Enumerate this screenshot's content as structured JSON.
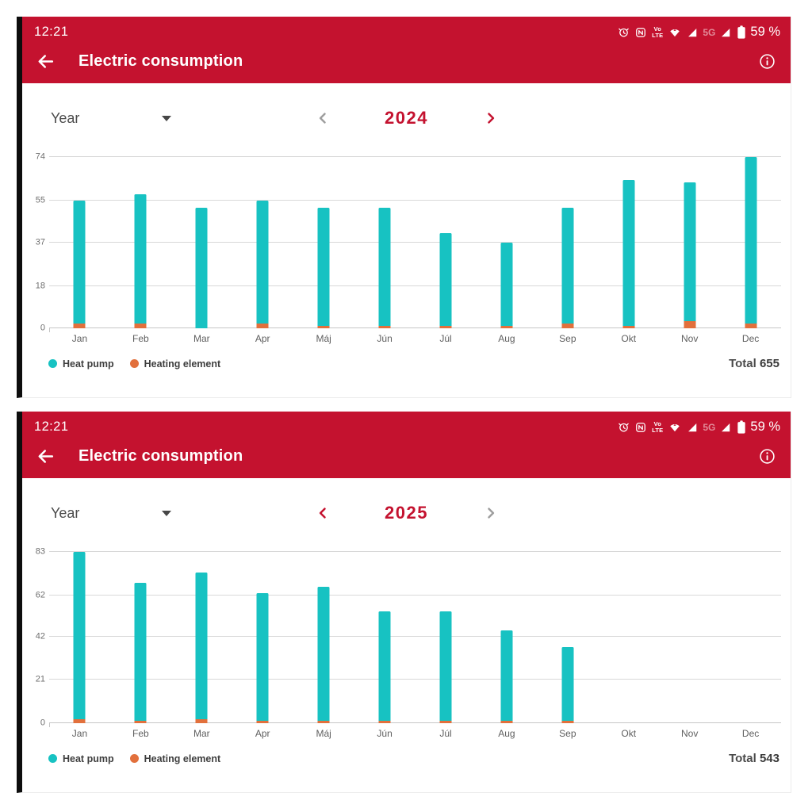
{
  "colors": {
    "accent": "#C4122F",
    "heat_pump": "#17C2C2",
    "heating_element": "#E2703C",
    "disabled_chevron": "#9E9E9E"
  },
  "screens": [
    {
      "status_bar": {
        "time": "12:21",
        "volte_line1": "Vo",
        "volte_line2": "LTE",
        "network_badge": "5G",
        "battery_percent": "59 %"
      },
      "app_bar": {
        "title": "Electric consumption"
      },
      "period_selector": {
        "mode": "Year",
        "value": "2024",
        "prev_enabled": false,
        "next_enabled": true
      },
      "footer": {
        "total_label": "Total",
        "total_value": "655"
      }
    },
    {
      "status_bar": {
        "time": "12:21",
        "volte_line1": "Vo",
        "volte_line2": "LTE",
        "network_badge": "5G",
        "battery_percent": "59 %"
      },
      "app_bar": {
        "title": "Electric consumption"
      },
      "period_selector": {
        "mode": "Year",
        "value": "2025",
        "prev_enabled": true,
        "next_enabled": false
      },
      "footer": {
        "total_label": "Total",
        "total_value": "543"
      }
    }
  ],
  "chart_data": [
    {
      "type": "bar",
      "stacked": true,
      "title": "Electric consumption 2024",
      "categories": [
        "Jan",
        "Feb",
        "Mar",
        "Apr",
        "Máj",
        "Jún",
        "Júl",
        "Aug",
        "Sep",
        "Okt",
        "Nov",
        "Dec"
      ],
      "series": [
        {
          "name": "Heat pump",
          "color": "#17C2C2",
          "values": [
            53,
            56,
            52,
            53,
            51,
            51,
            40,
            36,
            50,
            63,
            60,
            72
          ]
        },
        {
          "name": "Heating element",
          "color": "#E2703C",
          "values": [
            2,
            2,
            0,
            2,
            1,
            1,
            1,
            1,
            2,
            1,
            3,
            2
          ]
        }
      ],
      "totals": [
        55,
        58,
        52,
        55,
        52,
        52,
        41,
        37,
        52,
        64,
        63,
        74
      ],
      "yticks": [
        0,
        18,
        37,
        55,
        74
      ],
      "ymax": 74,
      "grid": true,
      "legend_position": "bottom-left",
      "total": 655
    },
    {
      "type": "bar",
      "stacked": true,
      "title": "Electric consumption 2025",
      "categories": [
        "Jan",
        "Feb",
        "Mar",
        "Apr",
        "Máj",
        "Jún",
        "Júl",
        "Aug",
        "Sep",
        "Okt",
        "Nov",
        "Dec"
      ],
      "series": [
        {
          "name": "Heat pump",
          "color": "#17C2C2",
          "values": [
            81,
            67,
            71,
            62,
            65,
            53,
            53,
            44,
            36,
            0,
            0,
            0
          ]
        },
        {
          "name": "Heating element",
          "color": "#E2703C",
          "values": [
            2,
            1,
            2,
            1,
            1,
            1,
            1,
            1,
            1,
            0,
            0,
            0
          ]
        }
      ],
      "totals": [
        83,
        68,
        73,
        63,
        66,
        54,
        54,
        45,
        37,
        0,
        0,
        0
      ],
      "yticks": [
        0,
        21,
        42,
        62,
        83
      ],
      "ymax": 83,
      "grid": true,
      "legend_position": "bottom-left",
      "total": 543
    }
  ]
}
